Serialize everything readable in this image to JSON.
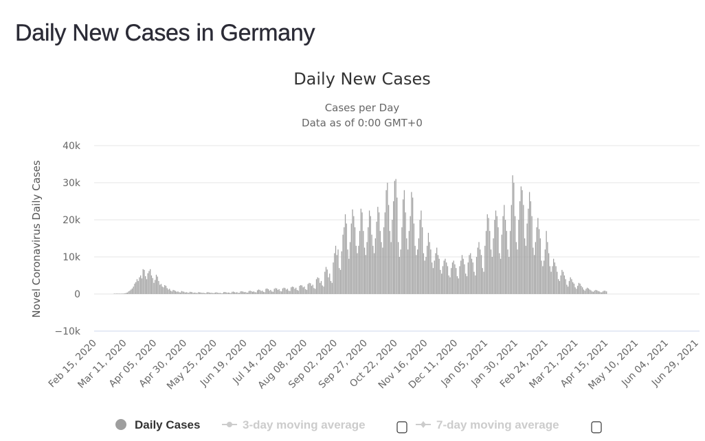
{
  "page": {
    "title": "Daily New Cases in Germany"
  },
  "chart_data": {
    "type": "bar",
    "title": "Daily New Cases",
    "subtitle_lines": [
      "Cases per Day",
      "Data as of 0:00 GMT+0"
    ],
    "ylabel": "Novel Coronavirus Daily Cases",
    "xlabel": "",
    "ylim": [
      -10000,
      40000
    ],
    "y_ticks": [
      40000,
      30000,
      20000,
      10000,
      0,
      -10000
    ],
    "y_tick_labels": [
      "40k",
      "30k",
      "20k",
      "10k",
      "0",
      "−10k"
    ],
    "x_start_date": "Feb 15, 2020",
    "x_tick_labels": [
      "Feb 15, 2020",
      "Mar 11, 2020",
      "Apr 05, 2020",
      "Apr 30, 2020",
      "May 25, 2020",
      "Jun 19, 2020",
      "Jul 14, 2020",
      "Aug 08, 2020",
      "Sep 02, 2020",
      "Sep 27, 2020",
      "Oct 22, 2020",
      "Nov 16, 2020",
      "Dec 11, 2020",
      "Jan 05, 2021",
      "Jan 30, 2021",
      "Feb 24, 2021",
      "Mar 21, 2021",
      "Apr 15, 2021",
      "May 10, 2021",
      "Jun 04, 2021",
      "Jun 29, 2021"
    ],
    "x_tick_interval_days": 25,
    "grid": true,
    "bar_color": "#9e9e9e",
    "data_start_day_offset": 14,
    "series": [
      {
        "name": "Daily Cases",
        "values": [
          0,
          0,
          10,
          20,
          30,
          40,
          60,
          100,
          150,
          200,
          300,
          400,
          700,
          900,
          1200,
          1500,
          2000,
          2800,
          3200,
          4000,
          3500,
          4500,
          5000,
          4200,
          6700,
          6500,
          4800,
          4000,
          5600,
          6200,
          6700,
          5000,
          4300,
          3000,
          3800,
          5200,
          4700,
          3500,
          2500,
          2700,
          2000,
          1800,
          2400,
          2200,
          1600,
          1200,
          1400,
          900,
          700,
          1100,
          1000,
          800,
          600,
          700,
          500,
          400,
          800,
          700,
          600,
          400,
          500,
          400,
          300,
          600,
          550,
          450,
          300,
          400,
          300,
          250,
          500,
          450,
          400,
          300,
          350,
          250,
          200,
          450,
          500,
          400,
          300,
          350,
          250,
          250,
          400,
          450,
          350,
          250,
          300,
          200,
          200,
          500,
          550,
          450,
          350,
          400,
          300,
          250,
          600,
          650,
          500,
          400,
          500,
          300,
          300,
          700,
          750,
          650,
          500,
          550,
          400,
          350,
          800,
          900,
          750,
          600,
          700,
          500,
          450,
          1000,
          1200,
          1100,
          800,
          900,
          600,
          500,
          1400,
          1500,
          1300,
          900,
          1100,
          700,
          600,
          1400,
          1600,
          1500,
          1100,
          1300,
          800,
          700,
          1500,
          1700,
          1600,
          1200,
          1400,
          900,
          800,
          1800,
          2000,
          1900,
          1400,
          1700,
          1100,
          900,
          2200,
          2400,
          2300,
          1800,
          2000,
          1300,
          1100,
          2700,
          3000,
          2900,
          2200,
          2500,
          1600,
          1400,
          4000,
          4500,
          4300,
          3000,
          3500,
          2300,
          2000,
          6000,
          7300,
          6600,
          4500,
          5500,
          3500,
          3000,
          8500,
          11000,
          13000,
          10500,
          12000,
          7000,
          6500,
          11500,
          16000,
          18000,
          21500,
          19000,
          12000,
          9500,
          14000,
          19000,
          22800,
          21000,
          18000,
          13000,
          11000,
          13000,
          17000,
          23000,
          22000,
          17000,
          12500,
          10500,
          14000,
          18000,
          22500,
          21000,
          16000,
          13000,
          11000,
          15000,
          19500,
          23500,
          22000,
          17000,
          14000,
          12500,
          18000,
          22000,
          28000,
          30000,
          24000,
          17000,
          14000,
          20000,
          25000,
          30500,
          31000,
          26000,
          14000,
          10000,
          12000,
          18000,
          25500,
          28000,
          22000,
          15000,
          12000,
          17000,
          21000,
          27500,
          26000,
          19000,
          13000,
          10500,
          12000,
          15000,
          20000,
          22500,
          18000,
          11000,
          9000,
          10000,
          13000,
          16500,
          14000,
          12000,
          8500,
          7000,
          9000,
          11000,
          12500,
          10500,
          9500,
          6500,
          5500,
          7500,
          9000,
          9500,
          8500,
          7500,
          5000,
          4500,
          7000,
          8500,
          9000,
          8000,
          7000,
          4800,
          4200,
          7500,
          9000,
          10500,
          9500,
          8000,
          5500,
          4800,
          8500,
          10500,
          11000,
          9500,
          8500,
          6000,
          5000,
          10000,
          12500,
          14000,
          12000,
          10500,
          7000,
          6000,
          13000,
          17000,
          21500,
          20500,
          17000,
          12000,
          10000,
          15000,
          20000,
          22500,
          21000,
          18000,
          11000,
          9500,
          16000,
          21000,
          24000,
          20000,
          17000,
          12000,
          10000,
          17000,
          24000,
          32000,
          30000,
          21000,
          14000,
          12000,
          20000,
          25000,
          29000,
          28000,
          24000,
          15000,
          13000,
          19000,
          23000,
          27500,
          25000,
          21000,
          12500,
          10500,
          14000,
          18000,
          20500,
          17500,
          15000,
          9000,
          7500,
          9000,
          12000,
          17000,
          14000,
          11000,
          7500,
          6000,
          7500,
          9500,
          8500,
          7500,
          6000,
          4000,
          3500,
          5000,
          6500,
          6000,
          5000,
          4000,
          2500,
          2000,
          3500,
          4500,
          4000,
          3200,
          2800,
          1800,
          1400,
          2200,
          3000,
          2800,
          2200,
          1800,
          1200,
          900,
          1400,
          1700,
          1500,
          1200,
          1000,
          700,
          600,
          900,
          1100,
          1000,
          800,
          700,
          500,
          450,
          700,
          900,
          850,
          700
        ]
      }
    ],
    "legend": {
      "position": "bottom",
      "items": [
        {
          "label": "Daily Cases",
          "color": "#9e9e9e",
          "active": true,
          "text_color": "#333333"
        },
        {
          "label": "3-day moving average",
          "color": "#cccccc",
          "active": false,
          "text_color": "#cccccc"
        },
        {
          "label": "7-day moving average",
          "color": "#cccccc",
          "active": false,
          "text_color": "#cccccc"
        }
      ]
    }
  }
}
